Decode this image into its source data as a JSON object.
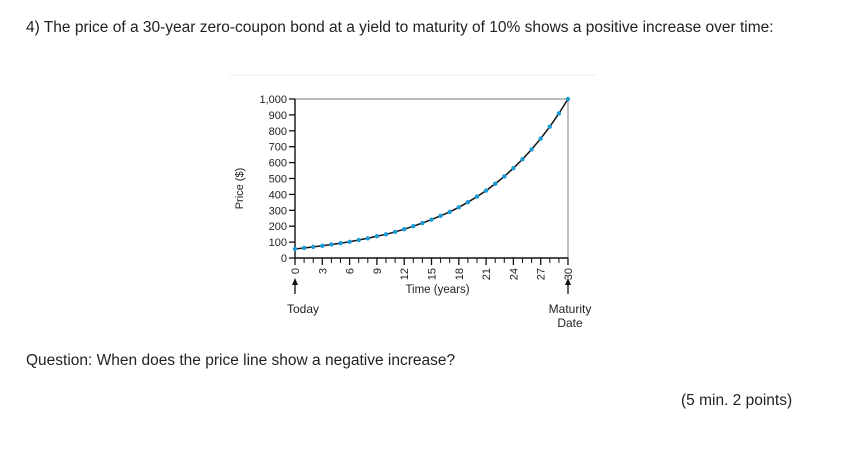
{
  "question": {
    "text": "4) The price of a 30-year zero-coupon bond at a yield to maturity of 10% shows a positive increase over time:"
  },
  "chart_data": {
    "type": "line",
    "title": "",
    "xlabel": "Time (years)",
    "ylabel": "Price ($)",
    "xlim": [
      0,
      30
    ],
    "ylim": [
      0,
      1000
    ],
    "x_ticks": [
      0,
      3,
      6,
      9,
      12,
      15,
      18,
      21,
      24,
      27,
      30
    ],
    "x_tick_labels": [
      "0",
      "3",
      "6",
      "9",
      "12",
      "15",
      "18",
      "21",
      "24",
      "27",
      "30"
    ],
    "y_ticks": [
      0,
      100,
      200,
      300,
      400,
      500,
      600,
      700,
      800,
      900,
      1000
    ],
    "y_tick_labels": [
      "0",
      "100",
      "200",
      "300",
      "400",
      "500",
      "600",
      "700",
      "800",
      "900",
      "1,000"
    ],
    "series": [
      {
        "name": "Price",
        "color": "#1a9ad6",
        "line_color": "#111111",
        "x": [
          0,
          1,
          2,
          3,
          4,
          5,
          6,
          7,
          8,
          9,
          10,
          11,
          12,
          13,
          14,
          15,
          16,
          17,
          18,
          19,
          20,
          21,
          22,
          23,
          24,
          25,
          26,
          27,
          28,
          29,
          30
        ],
        "values": [
          57,
          63,
          70,
          77,
          85,
          93,
          102,
          113,
          124,
          137,
          149,
          164,
          181,
          200,
          220,
          242,
          265,
          290,
          319,
          351,
          386,
          424,
          467,
          513,
          565,
          621,
          683,
          751,
          826,
          909,
          1000
        ]
      }
    ],
    "annotations": [
      {
        "label": "Today",
        "at_x": 0
      },
      {
        "label": "Maturity\nDate",
        "at_x": 30
      }
    ],
    "grid": false
  },
  "sub_question": {
    "text": "Question: When does the price line show a negative increase?"
  },
  "points": {
    "text": "(5 min. 2 points)"
  }
}
